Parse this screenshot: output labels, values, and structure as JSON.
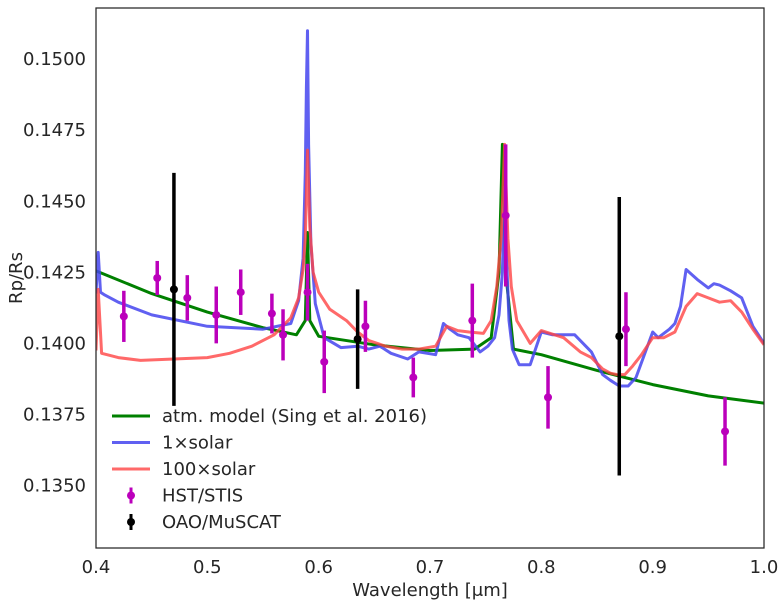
{
  "chart_data": {
    "type": "line",
    "title": "",
    "xlabel": "Wavelength [μm]",
    "ylabel": "Rp/Rs",
    "xlim": [
      0.4,
      1.0
    ],
    "ylim": [
      0.1328,
      0.1518
    ],
    "x_ticks": [
      {
        "value": 0.4,
        "label": "0.4"
      },
      {
        "value": 0.5,
        "label": "0.5"
      },
      {
        "value": 0.6,
        "label": "0.6"
      },
      {
        "value": 0.7,
        "label": "0.7"
      },
      {
        "value": 0.8,
        "label": "0.8"
      },
      {
        "value": 0.9,
        "label": "0.9"
      },
      {
        "value": 1.0,
        "label": "1.0"
      }
    ],
    "y_ticks": [
      {
        "value": 0.135,
        "label": "0.1350"
      },
      {
        "value": 0.1375,
        "label": "0.1375"
      },
      {
        "value": 0.14,
        "label": "0.1400"
      },
      {
        "value": 0.1425,
        "label": "0.1425"
      },
      {
        "value": 0.145,
        "label": "0.1450"
      },
      {
        "value": 0.1475,
        "label": "0.1475"
      },
      {
        "value": 0.15,
        "label": "0.1500"
      }
    ],
    "grid": false,
    "legend_position": "lower-left",
    "series": [
      {
        "name": "atm. model (Sing et al. 2016)",
        "kind": "line",
        "color": "#008000",
        "opacity": 1.0,
        "width": 3,
        "x": [
          0.4,
          0.45,
          0.5,
          0.55,
          0.58,
          0.588,
          0.59,
          0.592,
          0.6,
          0.65,
          0.7,
          0.74,
          0.755,
          0.762,
          0.765,
          0.768,
          0.775,
          0.8,
          0.85,
          0.9,
          0.95,
          1.0
        ],
        "y": [
          0.14255,
          0.14175,
          0.1411,
          0.14055,
          0.1403,
          0.1408,
          0.1439,
          0.1408,
          0.14025,
          0.13995,
          0.13975,
          0.1398,
          0.1402,
          0.1425,
          0.147,
          0.1425,
          0.1398,
          0.1396,
          0.13905,
          0.13855,
          0.13815,
          0.1379
        ]
      },
      {
        "name": "1×solar",
        "kind": "line",
        "color": "#4444ee",
        "opacity": 0.85,
        "width": 3,
        "x": [
          0.4,
          0.402,
          0.404,
          0.408,
          0.42,
          0.45,
          0.5,
          0.55,
          0.575,
          0.582,
          0.586,
          0.588,
          0.589,
          0.59,
          0.591,
          0.593,
          0.597,
          0.605,
          0.62,
          0.635,
          0.645,
          0.655,
          0.665,
          0.68,
          0.69,
          0.705,
          0.712,
          0.718,
          0.725,
          0.735,
          0.745,
          0.752,
          0.758,
          0.762,
          0.765,
          0.767,
          0.769,
          0.771,
          0.774,
          0.78,
          0.79,
          0.8,
          0.81,
          0.83,
          0.845,
          0.855,
          0.862,
          0.87,
          0.878,
          0.885,
          0.9,
          0.905,
          0.915,
          0.92,
          0.925,
          0.93,
          0.94,
          0.95,
          0.955,
          0.96,
          0.97,
          0.98,
          0.99,
          1.0
        ],
        "y": [
          0.14175,
          0.1432,
          0.1418,
          0.1417,
          0.14145,
          0.141,
          0.1406,
          0.1405,
          0.1407,
          0.1415,
          0.143,
          0.146,
          0.149,
          0.151,
          0.147,
          0.1435,
          0.1414,
          0.1402,
          0.13985,
          0.1399,
          0.1398,
          0.1399,
          0.13965,
          0.13945,
          0.1397,
          0.1396,
          0.1407,
          0.1405,
          0.1403,
          0.1402,
          0.1397,
          0.1399,
          0.1402,
          0.141,
          0.1425,
          0.1455,
          0.1428,
          0.1408,
          0.1398,
          0.13925,
          0.13925,
          0.1404,
          0.1403,
          0.1403,
          0.1397,
          0.1389,
          0.1387,
          0.1385,
          0.1385,
          0.1388,
          0.1404,
          0.1402,
          0.1405,
          0.1407,
          0.1413,
          0.1426,
          0.14225,
          0.14195,
          0.1421,
          0.14205,
          0.14185,
          0.1416,
          0.1406,
          0.14
        ]
      },
      {
        "name": "100×solar",
        "kind": "line",
        "color": "#ff4444",
        "opacity": 0.8,
        "width": 3,
        "x": [
          0.4,
          0.402,
          0.405,
          0.41,
          0.42,
          0.44,
          0.47,
          0.5,
          0.52,
          0.54,
          0.56,
          0.575,
          0.582,
          0.586,
          0.588,
          0.59,
          0.592,
          0.595,
          0.6,
          0.61,
          0.625,
          0.635,
          0.645,
          0.66,
          0.675,
          0.69,
          0.705,
          0.715,
          0.725,
          0.735,
          0.748,
          0.755,
          0.76,
          0.764,
          0.767,
          0.77,
          0.773,
          0.778,
          0.79,
          0.8,
          0.82,
          0.835,
          0.845,
          0.855,
          0.862,
          0.868,
          0.875,
          0.882,
          0.89,
          0.9,
          0.91,
          0.92,
          0.93,
          0.94,
          0.95,
          0.96,
          0.97,
          0.98,
          0.99,
          1.0
        ],
        "y": [
          0.13975,
          0.1419,
          0.13965,
          0.1396,
          0.1395,
          0.1394,
          0.13945,
          0.1395,
          0.13965,
          0.1399,
          0.1403,
          0.1409,
          0.1416,
          0.1426,
          0.1437,
          0.1468,
          0.1441,
          0.1425,
          0.1418,
          0.1412,
          0.1408,
          0.1404,
          0.1401,
          0.1399,
          0.1398,
          0.1398,
          0.1399,
          0.1406,
          0.14045,
          0.1404,
          0.14035,
          0.1408,
          0.142,
          0.1438,
          0.147,
          0.1437,
          0.142,
          0.1408,
          0.14,
          0.14045,
          0.1402,
          0.1397,
          0.1395,
          0.1391,
          0.13895,
          0.1389,
          0.1389,
          0.1392,
          0.1396,
          0.1402,
          0.1402,
          0.1404,
          0.1413,
          0.14175,
          0.1416,
          0.14145,
          0.1415,
          0.1411,
          0.1405,
          0.13995
        ]
      },
      {
        "name": "HST/STIS",
        "kind": "errorbar",
        "color": "#bb00bb",
        "x": [
          0.425,
          0.455,
          0.482,
          0.508,
          0.53,
          0.558,
          0.568,
          0.59,
          0.605,
          0.642,
          0.685,
          0.738,
          0.768,
          0.806,
          0.876,
          0.965
        ],
        "y": [
          0.14095,
          0.1423,
          0.1416,
          0.141,
          0.1418,
          0.14105,
          0.1403,
          0.1418,
          0.13935,
          0.1406,
          0.1388,
          0.1408,
          0.1445,
          0.1381,
          0.1405,
          0.1369
        ],
        "err": [
          0.0009,
          0.0006,
          0.0008,
          0.001,
          0.0008,
          0.0007,
          0.0009,
          0.001,
          0.0011,
          0.0009,
          0.0007,
          0.0013,
          0.0025,
          0.0011,
          0.0013,
          0.0012
        ]
      },
      {
        "name": "OAO/MuSCAT",
        "kind": "errorbar",
        "color": "#000000",
        "x": [
          0.47,
          0.635,
          0.87
        ],
        "y": [
          0.1419,
          0.14015,
          0.14025
        ],
        "err": [
          0.0041,
          0.00175,
          0.0049
        ]
      }
    ]
  }
}
